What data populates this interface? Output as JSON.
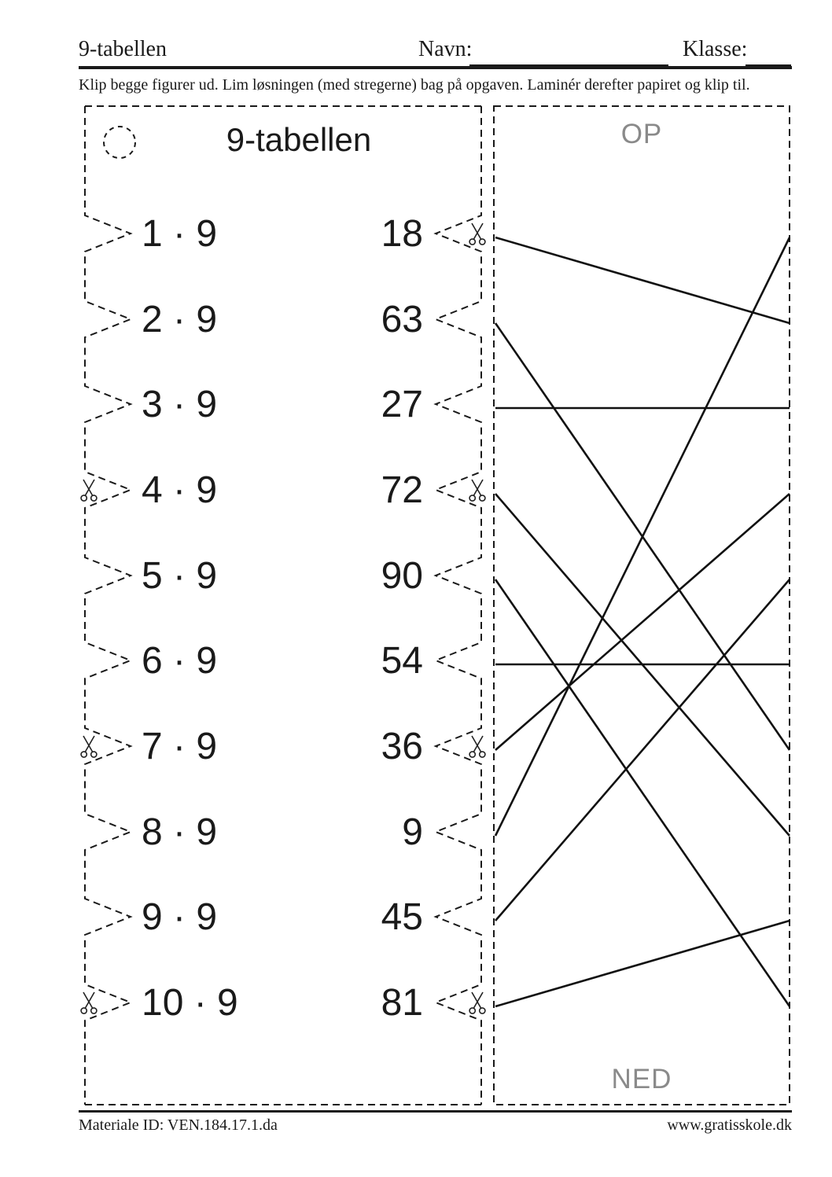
{
  "header": {
    "title": "9-tabellen",
    "name_label": "Navn:",
    "class_label": "Klasse:"
  },
  "instruction": "Klip begge figurer ud. Lim løsningen (med stregerne) bag på opgaven. Laminér derefter papiret og klip til.",
  "task_panel": {
    "title": "9-tabellen",
    "rows": [
      {
        "problem": "1 · 9",
        "answer": "18"
      },
      {
        "problem": "2 · 9",
        "answer": "63"
      },
      {
        "problem": "3 · 9",
        "answer": "27"
      },
      {
        "problem": "4 · 9",
        "answer": "72"
      },
      {
        "problem": "5 · 9",
        "answer": "90"
      },
      {
        "problem": "6 · 9",
        "answer": "54"
      },
      {
        "problem": "7 · 9",
        "answer": "36"
      },
      {
        "problem": "8 · 9",
        "answer": "9"
      },
      {
        "problem": "9 · 9",
        "answer": "45"
      },
      {
        "problem": "10 · 9",
        "answer": "81"
      }
    ],
    "scissors_left_rows": [
      4,
      7,
      10
    ],
    "scissors_right_rows": [
      1,
      4,
      7,
      10
    ]
  },
  "solution_panel": {
    "top_label": "OP",
    "bottom_label": "NED",
    "lines": [
      {
        "from_row": 1,
        "to_row": 2
      },
      {
        "from_row": 2,
        "to_row": 7
      },
      {
        "from_row": 3,
        "to_row": 3
      },
      {
        "from_row": 4,
        "to_row": 8
      },
      {
        "from_row": 5,
        "to_row": 10
      },
      {
        "from_row": 6,
        "to_row": 6
      },
      {
        "from_row": 7,
        "to_row": 4
      },
      {
        "from_row": 8,
        "to_row": 1
      },
      {
        "from_row": 9,
        "to_row": 5
      },
      {
        "from_row": 10,
        "to_row": 9
      }
    ]
  },
  "footer": {
    "material_id": "Materiale ID: VEN.184.17.1.da",
    "website": "www.gratisskole.dk"
  },
  "colors": {
    "ink": "#1a1a1a",
    "muted": "#8a8a8a"
  }
}
